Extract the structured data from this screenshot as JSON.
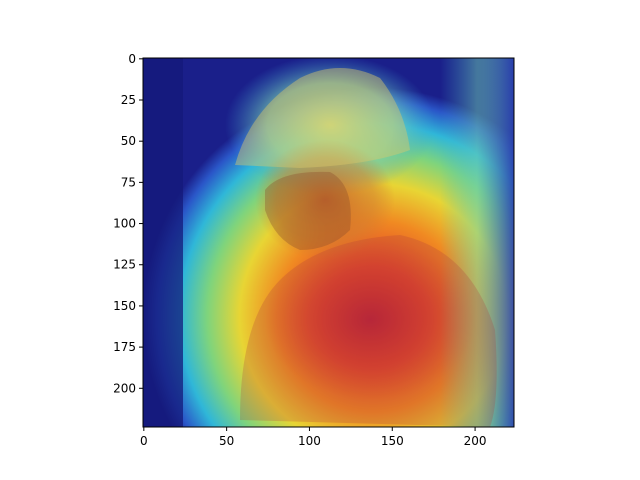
{
  "chart_data": {
    "type": "heatmap",
    "title": "",
    "xlabel": "",
    "ylabel": "",
    "xlim": [
      0,
      224
    ],
    "ylim": [
      224,
      0
    ],
    "xticks": [
      0,
      50,
      100,
      150,
      200
    ],
    "yticks": [
      0,
      25,
      50,
      75,
      100,
      125,
      150,
      175,
      200
    ],
    "grid": false,
    "legend": "none",
    "description_colormap": "jet",
    "overlay": "saliency heatmap blended over a photograph of a boy wearing a cap"
  }
}
